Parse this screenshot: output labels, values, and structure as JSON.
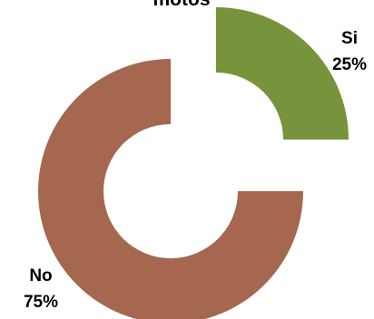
{
  "chart_data": {
    "type": "pie",
    "variant": "exploded-donut",
    "title": "motos",
    "slices": [
      {
        "label": "Si",
        "value": 25,
        "percent_label": "25%",
        "color": "#77933C"
      },
      {
        "label": "No",
        "value": 75,
        "percent_label": "75%",
        "color": "#A5674F"
      }
    ],
    "legend": "none"
  }
}
